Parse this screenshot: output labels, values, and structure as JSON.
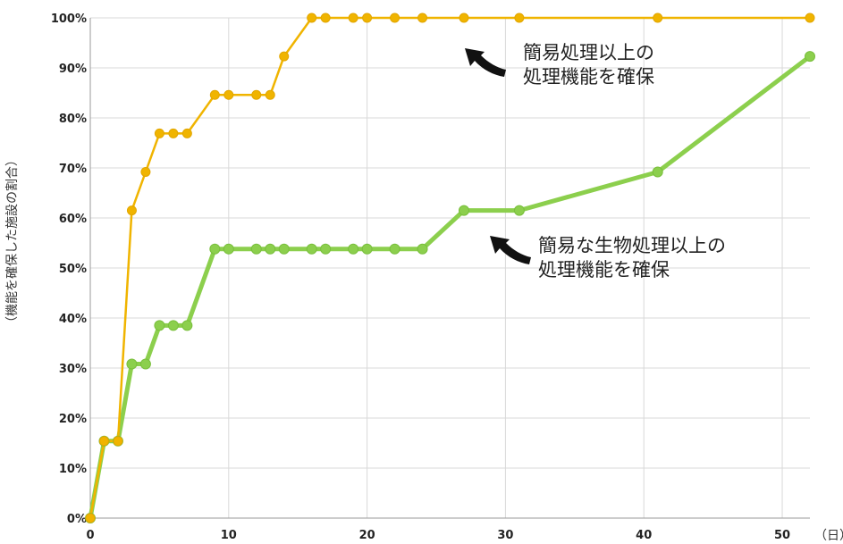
{
  "chart_data": {
    "type": "line",
    "title": "",
    "xlabel": "（日）",
    "ylabel": "（機能を確保した施設の割合）",
    "xlim": [
      0,
      52
    ],
    "ylim": [
      0,
      100
    ],
    "x_ticks": [
      0,
      10,
      20,
      30,
      40,
      50
    ],
    "y_ticks": [
      "0%",
      "10%",
      "20%",
      "30%",
      "40%",
      "50%",
      "60%",
      "70%",
      "80%",
      "90%",
      "100%"
    ],
    "grid": true,
    "series": [
      {
        "color": "#f0b400",
        "points": [
          [
            0,
            0
          ],
          [
            1,
            15.4
          ],
          [
            2,
            15.4
          ],
          [
            3,
            61.5
          ],
          [
            4,
            69.2
          ],
          [
            5,
            76.9
          ],
          [
            6,
            76.9
          ],
          [
            7,
            76.9
          ],
          [
            9,
            84.6
          ],
          [
            10,
            84.6
          ],
          [
            12,
            84.6
          ],
          [
            13,
            84.6
          ],
          [
            14,
            92.3
          ],
          [
            16,
            100
          ],
          [
            17,
            100
          ],
          [
            19,
            100
          ],
          [
            20,
            100
          ],
          [
            22,
            100
          ],
          [
            24,
            100
          ],
          [
            27,
            100
          ],
          [
            31,
            100
          ],
          [
            41,
            100
          ],
          [
            52,
            100
          ]
        ]
      },
      {
        "color": "#8ccf4d",
        "points": [
          [
            0,
            0
          ],
          [
            1,
            15.4
          ],
          [
            2,
            15.4
          ],
          [
            3,
            30.8
          ],
          [
            4,
            30.8
          ],
          [
            5,
            38.5
          ],
          [
            6,
            38.5
          ],
          [
            7,
            38.5
          ],
          [
            9,
            53.8
          ],
          [
            10,
            53.8
          ],
          [
            12,
            53.8
          ],
          [
            13,
            53.8
          ],
          [
            14,
            53.8
          ],
          [
            16,
            53.8
          ],
          [
            17,
            53.8
          ],
          [
            19,
            53.8
          ],
          [
            20,
            53.8
          ],
          [
            22,
            53.8
          ],
          [
            24,
            53.8
          ],
          [
            27,
            61.5
          ],
          [
            31,
            61.5
          ],
          [
            41,
            69.2
          ],
          [
            52,
            92.3
          ]
        ]
      }
    ],
    "annotations": [
      {
        "lines": [
          "簡易処理以上の",
          "処理機能を確保"
        ],
        "target_series": 0,
        "arrow_icon": "curved-arrow-icon"
      },
      {
        "lines": [
          "簡易な生物処理以上の",
          "処理機能を確保"
        ],
        "target_series": 1,
        "arrow_icon": "curved-arrow-icon"
      }
    ]
  }
}
